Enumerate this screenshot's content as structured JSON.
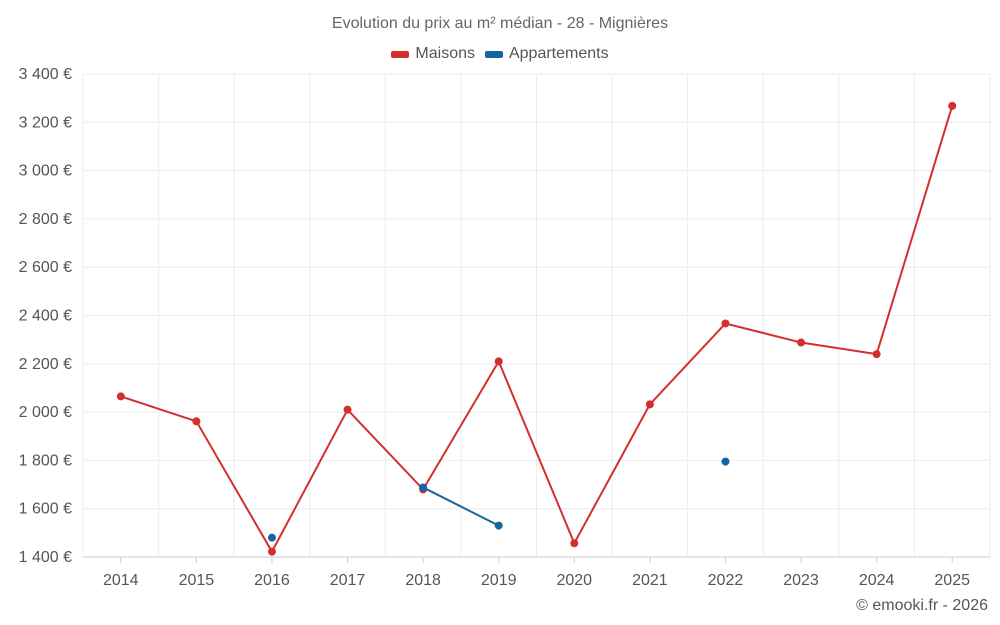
{
  "chart_data": {
    "type": "line",
    "title": "Evolution du prix au m² médian - 28 - Mignières",
    "xlabel": "",
    "ylabel": "",
    "categories": [
      "2014",
      "2015",
      "2016",
      "2017",
      "2018",
      "2019",
      "2020",
      "2021",
      "2022",
      "2023",
      "2024",
      "2025"
    ],
    "y_ticks": [
      "1 400 €",
      "1 600 €",
      "1 800 €",
      "2 000 €",
      "2 200 €",
      "2 400 €",
      "2 600 €",
      "2 800 €",
      "3 000 €",
      "3 200 €",
      "3 400 €"
    ],
    "ylim": [
      1400,
      3400
    ],
    "grid": true,
    "legend_position": "top-center",
    "series": [
      {
        "name": "Maisons",
        "color": "#d32f2f",
        "values": [
          2065,
          1962,
          1422,
          2010,
          1680,
          2210,
          1457,
          2032,
          2367,
          2288,
          2240,
          3268
        ]
      },
      {
        "name": "Appartements",
        "color": "#1565a0",
        "values": [
          null,
          null,
          1480,
          null,
          1688,
          1530,
          null,
          null,
          1795,
          null,
          null,
          null
        ]
      }
    ]
  },
  "credit": "© emooki.fr - 2026"
}
